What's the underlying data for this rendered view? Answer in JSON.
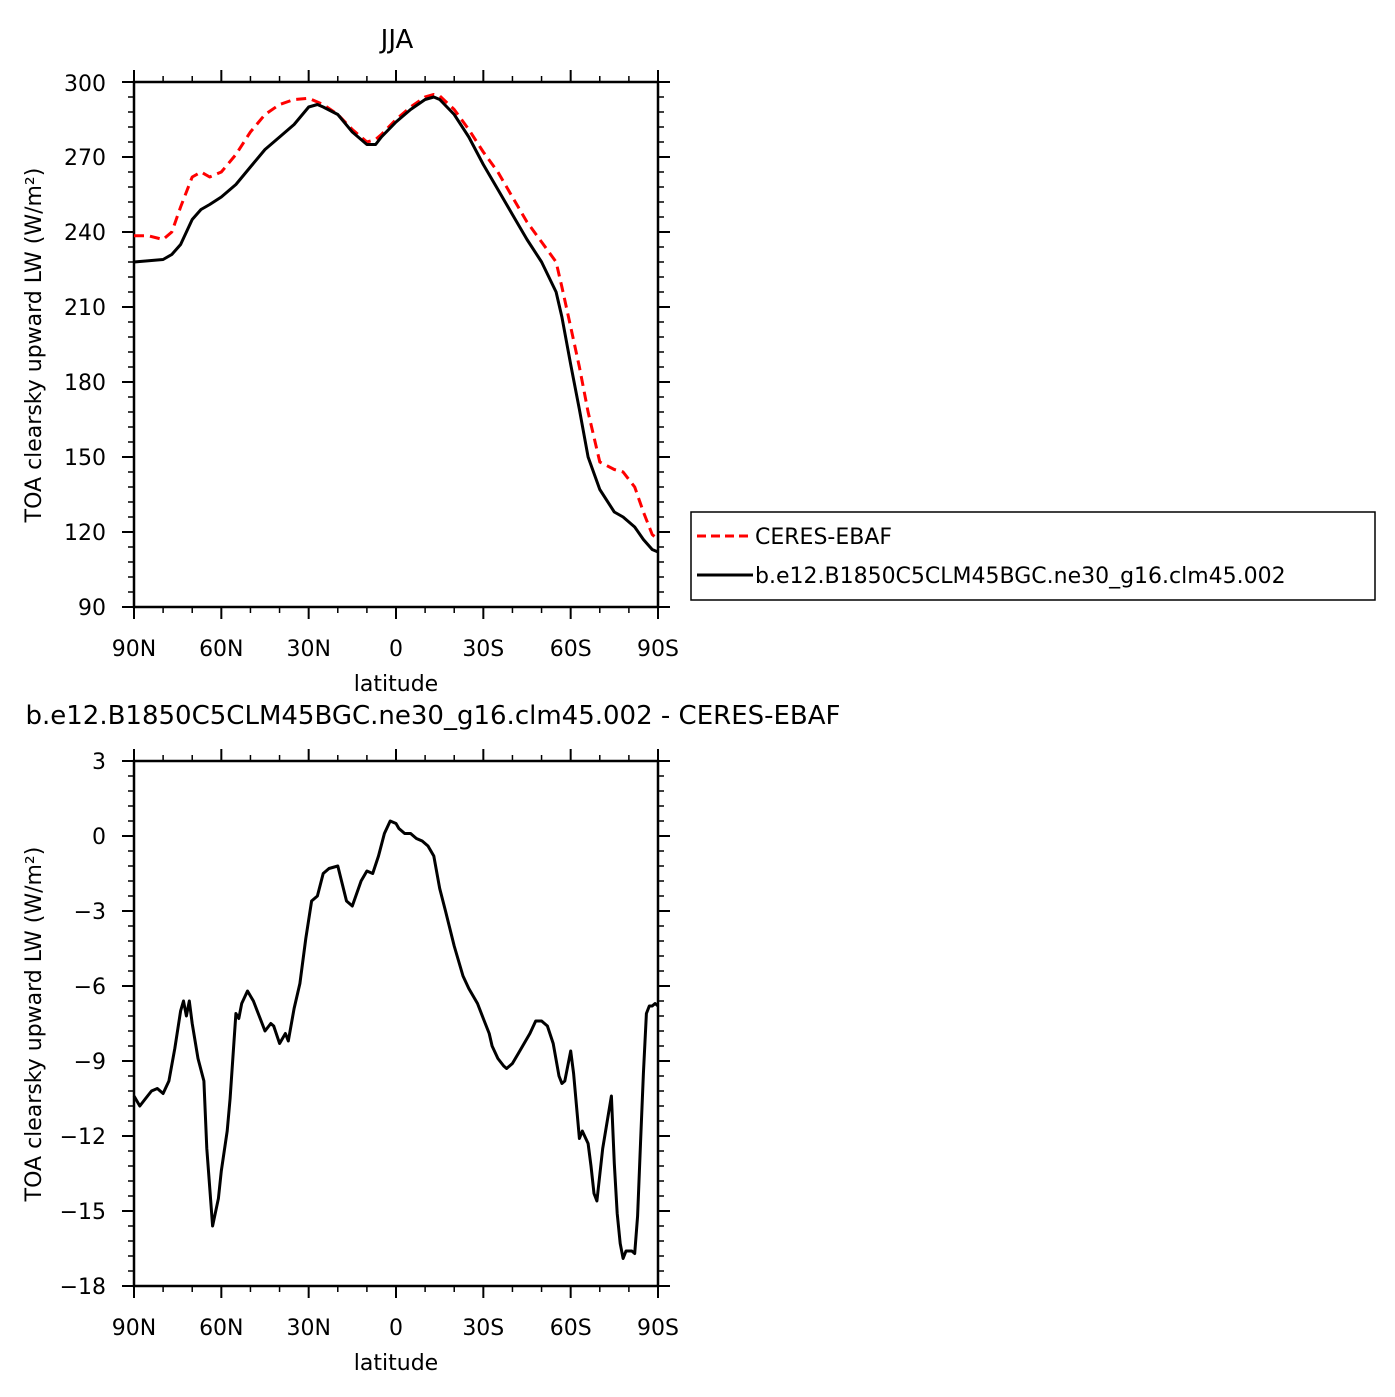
{
  "colors": {
    "ceres": "#ff0000",
    "model": "#000000",
    "frame": "#000000",
    "background": "#ffffff"
  },
  "chart_data": [
    {
      "type": "line",
      "title": "JJA",
      "xlabel": "latitude",
      "ylabel": "TOA clearsky upward LW (W/m²)",
      "xlim": [
        -90,
        90
      ],
      "ylim": [
        90,
        300
      ],
      "xticks": [
        -90,
        -60,
        -30,
        0,
        30,
        60,
        90
      ],
      "xtick_labels": [
        "90N",
        "60N",
        "30N",
        "0",
        "30S",
        "60S",
        "90S"
      ],
      "yticks": [
        90,
        120,
        150,
        180,
        210,
        240,
        270,
        300
      ],
      "ytick_labels": [
        "90",
        "120",
        "150",
        "180",
        "210",
        "240",
        "270",
        "300"
      ],
      "grid": false,
      "legend_placement": "right of plot",
      "x": [
        -90,
        -85,
        -80,
        -77,
        -74,
        -70,
        -67,
        -64,
        -60,
        -55,
        -50,
        -45,
        -40,
        -35,
        -30,
        -27,
        -25,
        -20,
        -15,
        -10,
        -7,
        -5,
        0,
        5,
        10,
        13,
        15,
        20,
        25,
        30,
        35,
        40,
        45,
        50,
        55,
        57,
        60,
        63,
        66,
        70,
        75,
        78,
        82,
        85,
        88,
        90
      ],
      "series": [
        {
          "name": "CERES-EBAF",
          "color": "#ff0000",
          "dash": "dashed",
          "values": [
            238.5,
            238.5,
            237,
            240,
            250,
            262,
            264,
            262,
            264,
            271,
            280,
            287,
            291,
            293,
            293.5,
            292,
            291,
            287,
            281,
            276,
            277,
            279,
            285,
            290,
            294,
            295,
            294.5,
            289,
            281,
            272,
            264,
            254,
            244,
            236,
            228,
            218,
            202,
            186,
            168,
            148,
            145,
            144,
            138,
            128,
            119,
            117
          ]
        },
        {
          "name": "b.e12.B1850C5CLM45BGC.ne30_g16.clm45.002",
          "color": "#000000",
          "dash": "solid",
          "values": [
            228,
            228.5,
            229,
            231,
            235,
            245,
            249,
            251,
            254,
            259,
            266,
            273,
            278,
            283,
            290,
            291,
            290,
            287,
            280,
            275,
            275,
            278,
            284,
            289,
            293,
            294,
            293,
            287,
            278,
            267,
            257,
            247,
            237,
            228,
            216,
            206,
            187,
            169,
            150,
            137,
            128,
            126,
            122,
            117,
            113,
            112
          ]
        }
      ]
    },
    {
      "type": "line",
      "title": "b.e12.B1850C5CLM45BGC.ne30_g16.clm45.002 - CERES-EBAF",
      "xlabel": "latitude",
      "ylabel": "TOA clearsky upward LW (W/m²)",
      "xlim": [
        -90,
        90
      ],
      "ylim": [
        -18,
        3
      ],
      "xticks": [
        -90,
        -60,
        -30,
        0,
        30,
        60,
        90
      ],
      "xtick_labels": [
        "90N",
        "60N",
        "30N",
        "0",
        "30S",
        "60S",
        "90S"
      ],
      "yticks": [
        -18,
        -15,
        -12,
        -9,
        -6,
        -3,
        0,
        3
      ],
      "ytick_labels": [
        "−18",
        "−15",
        "−12",
        "−9",
        "−6",
        "−3",
        "0",
        "3"
      ],
      "grid": false,
      "x": [
        -90,
        -88,
        -86,
        -84,
        -82,
        -80,
        -78,
        -76,
        -74,
        -73,
        -72,
        -71,
        -70,
        -68,
        -66,
        -65,
        -63,
        -61,
        -60,
        -58,
        -57,
        -55,
        -54,
        -53,
        -51,
        -49,
        -47,
        -45,
        -43,
        -42,
        -40,
        -38,
        -37,
        -35,
        -33,
        -31,
        -29,
        -27,
        -25,
        -23,
        -20,
        -17,
        -15,
        -12,
        -10,
        -8,
        -6,
        -4,
        -2,
        0,
        1,
        3,
        5,
        7,
        9,
        11,
        13,
        15,
        17,
        20,
        23,
        25,
        28,
        30,
        32,
        33,
        35,
        37,
        38,
        40,
        42,
        44,
        46,
        48,
        50,
        52,
        54,
        56,
        57,
        58,
        60,
        61,
        63,
        64,
        66,
        67,
        68,
        69,
        71,
        72,
        74,
        75,
        76,
        77,
        78,
        79,
        81,
        82,
        83,
        84,
        85,
        86,
        87,
        88,
        89,
        90
      ],
      "series": [
        {
          "name": "",
          "color": "#000000",
          "dash": "solid",
          "values": [
            -10.4,
            -10.8,
            -10.5,
            -10.2,
            -10.1,
            -10.3,
            -9.8,
            -8.5,
            -7,
            -6.6,
            -7.2,
            -6.6,
            -7.5,
            -8.9,
            -9.8,
            -12.5,
            -15.6,
            -14.5,
            -13.4,
            -11.8,
            -10.5,
            -7.1,
            -7.3,
            -6.7,
            -6.2,
            -6.6,
            -7.2,
            -7.8,
            -7.5,
            -7.6,
            -8.3,
            -7.9,
            -8.2,
            -6.9,
            -5.9,
            -4.1,
            -2.6,
            -2.4,
            -1.5,
            -1.3,
            -1.2,
            -2.6,
            -2.8,
            -1.8,
            -1.4,
            -1.5,
            -0.8,
            0.1,
            0.6,
            0.5,
            0.3,
            0.1,
            0.1,
            -0.1,
            -0.2,
            -0.4,
            -0.8,
            -2.1,
            -3,
            -4.4,
            -5.6,
            -6.1,
            -6.7,
            -7.3,
            -7.9,
            -8.4,
            -8.9,
            -9.2,
            -9.3,
            -9.1,
            -8.7,
            -8.3,
            -7.9,
            -7.4,
            -7.4,
            -7.6,
            -8.3,
            -9.6,
            -9.9,
            -9.8,
            -8.6,
            -9.5,
            -12.1,
            -11.8,
            -12.3,
            -13.2,
            -14.3,
            -14.6,
            -12.5,
            -11.8,
            -10.4,
            -13.1,
            -15.1,
            -16.3,
            -16.9,
            -16.6,
            -16.6,
            -16.7,
            -15.2,
            -12.3,
            -9.5,
            -7.1,
            -6.8,
            -6.8,
            -6.7,
            -6.8
          ]
        }
      ]
    }
  ]
}
